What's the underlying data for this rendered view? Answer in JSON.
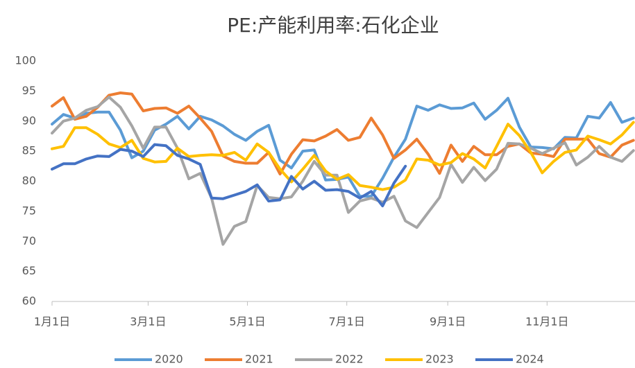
{
  "chart_data": {
    "type": "line",
    "title": "PE:产能利用率:石化企业",
    "x": [
      0,
      7,
      14,
      21,
      28,
      35,
      42,
      49,
      56,
      63,
      70,
      77,
      84,
      91,
      98,
      105,
      112,
      119,
      126,
      133,
      140,
      147,
      154,
      161,
      168,
      175,
      182,
      189,
      196,
      203,
      210,
      217,
      224,
      231,
      238,
      245,
      252,
      259,
      266,
      273,
      280,
      287,
      294,
      301,
      308,
      315,
      322,
      329,
      336,
      343,
      350,
      357
    ],
    "xlim": [
      0,
      358
    ],
    "xticks": [
      {
        "value": 0,
        "label": "1月1日"
      },
      {
        "value": 59,
        "label": "3月1日"
      },
      {
        "value": 120,
        "label": "5月1日"
      },
      {
        "value": 181,
        "label": "7月1日"
      },
      {
        "value": 243,
        "label": "9月1日"
      },
      {
        "value": 304,
        "label": "11月1日"
      }
    ],
    "ylim": [
      60,
      100
    ],
    "yticks": [
      60,
      65,
      70,
      75,
      80,
      85,
      90,
      95,
      100
    ],
    "grid": false,
    "legend": "bottom",
    "series": [
      {
        "name": "2020",
        "color": "#5b9bd5",
        "values": [
          89.5,
          91.1,
          90.5,
          91.3,
          91.5,
          91.5,
          88.5,
          83.9,
          85,
          88.5,
          89.5,
          90.8,
          88.7,
          90.8,
          90.2,
          89.2,
          87.8,
          86.8,
          88.3,
          89.3,
          83.5,
          82.2,
          85,
          85.2,
          80.2,
          80.3,
          80.7,
          77.5,
          77.5,
          80.5,
          84,
          87,
          92.5,
          91.8,
          92.7,
          92.1,
          92.2,
          93,
          90.3,
          91.8,
          93.8,
          89,
          85.7,
          85.6,
          85.4,
          87.3,
          87.2,
          90.8,
          90.5,
          93.1,
          89.8,
          90.5
        ]
      },
      {
        "name": "2021",
        "color": "#ed7d31",
        "values": [
          92.5,
          93.9,
          90.3,
          90.8,
          92.3,
          94.3,
          94.7,
          94.5,
          91.7,
          92.1,
          92.2,
          91.3,
          92.5,
          90.5,
          88.3,
          84.2,
          83.3,
          83,
          83,
          84.8,
          81.2,
          84.5,
          86.9,
          86.7,
          87.5,
          88.6,
          86.8,
          87.3,
          90.5,
          87.7,
          83.8,
          85.2,
          87,
          84.5,
          81.3,
          86,
          83.3,
          85.8,
          84.4,
          84.4,
          85.8,
          86.2,
          84.7,
          84.5,
          84.1,
          87,
          87,
          87,
          84.6,
          84,
          86,
          86.8
        ]
      },
      {
        "name": "2022",
        "color": "#a5a5a5",
        "values": [
          88,
          90,
          90.5,
          91.8,
          92.4,
          94,
          92.3,
          89.2,
          85.5,
          89,
          89,
          85.5,
          80.4,
          81.3,
          77.2,
          69.5,
          72.5,
          73.3,
          79.3,
          77.3,
          77.1,
          77.4,
          80,
          83.3,
          81,
          81,
          74.8,
          76.7,
          77.2,
          76.5,
          77.5,
          73.4,
          72.3,
          74.8,
          77.3,
          82.8,
          79.8,
          82.3,
          80.1,
          82,
          86.3,
          86.2,
          85.5,
          84.6,
          85.5,
          86.4,
          82.7,
          84,
          85.8,
          84,
          83.3,
          85.1
        ]
      },
      {
        "name": "2023",
        "color": "#ffc000",
        "values": [
          85.4,
          85.8,
          88.9,
          88.9,
          87.8,
          86.2,
          85.6,
          86.8,
          83.8,
          83.2,
          83.3,
          85.5,
          84.1,
          84.3,
          84.4,
          84.3,
          84.8,
          83.5,
          86.2,
          84.8,
          82,
          79.9,
          82,
          84.3,
          81.7,
          80.3,
          81.1,
          79.3,
          79,
          78.6,
          79,
          80.2,
          83.7,
          83.5,
          82.7,
          83.1,
          84.6,
          83.7,
          82.2,
          85.8,
          89.5,
          87.6,
          84.8,
          81.4,
          83.3,
          84.8,
          85.2,
          87.5,
          86.9,
          86.2,
          87.7,
          89.8
        ]
      },
      {
        "name": "2024",
        "color": "#4472c4",
        "values": [
          82,
          82.9,
          82.9,
          83.7,
          84.2,
          84.1,
          85.3,
          85,
          84.1,
          86.1,
          85.9,
          84.3,
          83.7,
          82.8,
          77.2,
          77.1,
          77.7,
          78.3,
          79.4,
          76.7,
          76.9,
          80.8,
          78.7,
          80,
          78.5,
          78.6,
          78.3,
          77.2,
          78.3,
          75.9,
          79.7,
          82.5,
          null,
          null,
          null,
          null,
          null,
          null,
          null,
          null,
          null,
          null,
          null,
          null,
          null,
          null,
          null,
          null,
          null,
          null,
          null,
          null
        ]
      }
    ]
  }
}
